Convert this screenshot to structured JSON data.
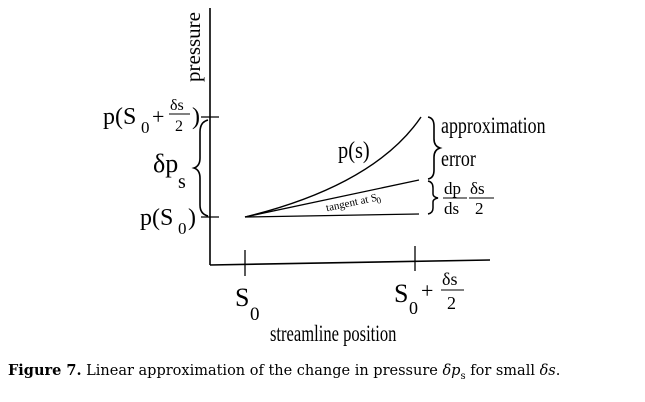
{
  "axes": {
    "y_label": "pressure",
    "x_label": "streamline position"
  },
  "y_ticks": {
    "upper": {
      "prefix": "p(S",
      "sub": "0",
      "plus": "+",
      "num": "δs",
      "den": "2",
      "close": ")"
    },
    "lower": {
      "prefix": "p(S",
      "sub": "0",
      "close": ")"
    }
  },
  "delta_p": {
    "main": "δp",
    "sub": "s"
  },
  "curve_label": "p(s)",
  "tangent_label": "tangent at S",
  "tangent_sub": "0",
  "brace_labels": {
    "approximation": "approximation",
    "error": "error",
    "frac1_num": "dp",
    "frac1_den": "ds",
    "frac2_num": "δs",
    "frac2_den": "2"
  },
  "x_ticks": {
    "s0": {
      "main": "S",
      "sub": "0"
    },
    "s1": {
      "main": "S",
      "sub": "0",
      "plus": "+",
      "num": "δs",
      "den": "2"
    }
  },
  "caption": {
    "label": "Figure 7.",
    "text1": " Linear approximation of the change in pressure ",
    "math1": "δp",
    "math1_sub": "s",
    "text2": " for small ",
    "math2": "δs",
    "text3": "."
  }
}
